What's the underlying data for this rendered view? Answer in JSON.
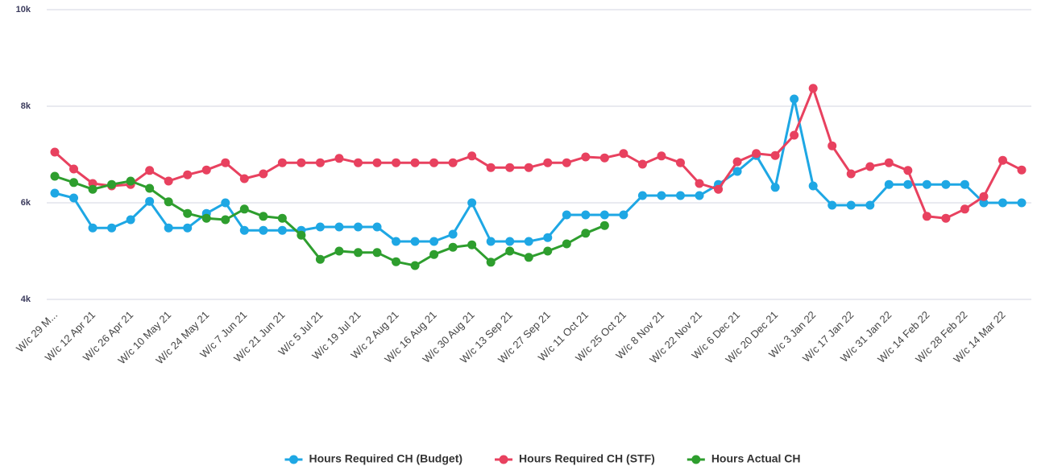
{
  "chart_data": {
    "type": "line",
    "categories": [
      "W/c 29 M...",
      null,
      "W/c 12 Apr 21",
      null,
      "W/c 26 Apr 21",
      null,
      "W/c 10 May 21",
      null,
      "W/c 24 May 21",
      null,
      "W/c 7 Jun 21",
      null,
      "W/c 21 Jun 21",
      null,
      "W/c 5 Jul 21",
      null,
      "W/c 19 Jul 21",
      null,
      "W/c 2 Aug 21",
      null,
      "W/c 16 Aug 21",
      null,
      "W/c 30 Aug 21",
      null,
      "W/c 13 Sep 21",
      null,
      "W/c 27 Sep 21",
      null,
      "W/c 11 Oct 21",
      null,
      "W/c 25 Oct 21",
      null,
      "W/c 8 Nov 21",
      null,
      "W/c 22 Nov 21",
      null,
      "W/c 6 Dec 21",
      null,
      "W/c 20 Dec 21",
      null,
      "W/c 3 Jan 22",
      null,
      "W/c 17 Jan 22",
      null,
      "W/c 31 Jan 22",
      null,
      "W/c 14 Feb 22",
      null,
      "W/c 28 Feb 22",
      null,
      "W/c 14 Mar 22",
      null
    ],
    "series": [
      {
        "name": "Hours Required CH (Budget)",
        "color": "#1ea7e4",
        "values": [
          6200,
          6100,
          5480,
          5480,
          5650,
          6030,
          5480,
          5480,
          5780,
          6000,
          5430,
          5430,
          5430,
          5430,
          5500,
          5500,
          5500,
          5500,
          5200,
          5200,
          5200,
          5350,
          6000,
          5200,
          5200,
          5200,
          5280,
          5750,
          5750,
          5750,
          5750,
          6150,
          6150,
          6150,
          6150,
          6380,
          6650,
          6980,
          6320,
          8150,
          6350,
          5950,
          5950,
          5950,
          6380,
          6380,
          6380,
          6380,
          6380,
          6000,
          6000,
          6000
        ]
      },
      {
        "name": "Hours Required CH (STF)",
        "color": "#e8415f",
        "values": [
          7050,
          6700,
          6400,
          6350,
          6380,
          6670,
          6450,
          6580,
          6680,
          6830,
          6500,
          6600,
          6830,
          6830,
          6830,
          6920,
          6830,
          6830,
          6830,
          6830,
          6830,
          6830,
          6970,
          6730,
          6730,
          6730,
          6830,
          6830,
          6950,
          6930,
          7020,
          6800,
          6970,
          6830,
          6400,
          6280,
          6850,
          7020,
          6980,
          7400,
          8370,
          7180,
          6600,
          6750,
          6830,
          6670,
          5720,
          5680,
          5870,
          6130,
          6880,
          6680
        ]
      },
      {
        "name": "Hours Actual CH",
        "color": "#2e9e2e",
        "values": [
          6550,
          6420,
          6280,
          6380,
          6450,
          6300,
          6020,
          5780,
          5680,
          5650,
          5870,
          5720,
          5680,
          5330,
          4830,
          5000,
          4970,
          4970,
          4780,
          4700,
          4930,
          5080,
          5130,
          4770,
          5000,
          4870,
          5000,
          5150,
          5370,
          5530,
          null,
          null,
          null,
          null,
          null,
          null,
          null,
          null,
          null,
          null,
          null,
          null,
          null,
          null,
          null,
          null,
          null,
          null,
          null,
          null,
          null,
          null
        ]
      }
    ],
    "ylim": [
      4000,
      10000
    ],
    "yticks": [
      {
        "value": 4000,
        "label": "4k"
      },
      {
        "value": 6000,
        "label": "6k"
      },
      {
        "value": 8000,
        "label": "8k"
      },
      {
        "value": 10000,
        "label": "10k"
      }
    ],
    "grid": true,
    "legend": "bottom"
  }
}
